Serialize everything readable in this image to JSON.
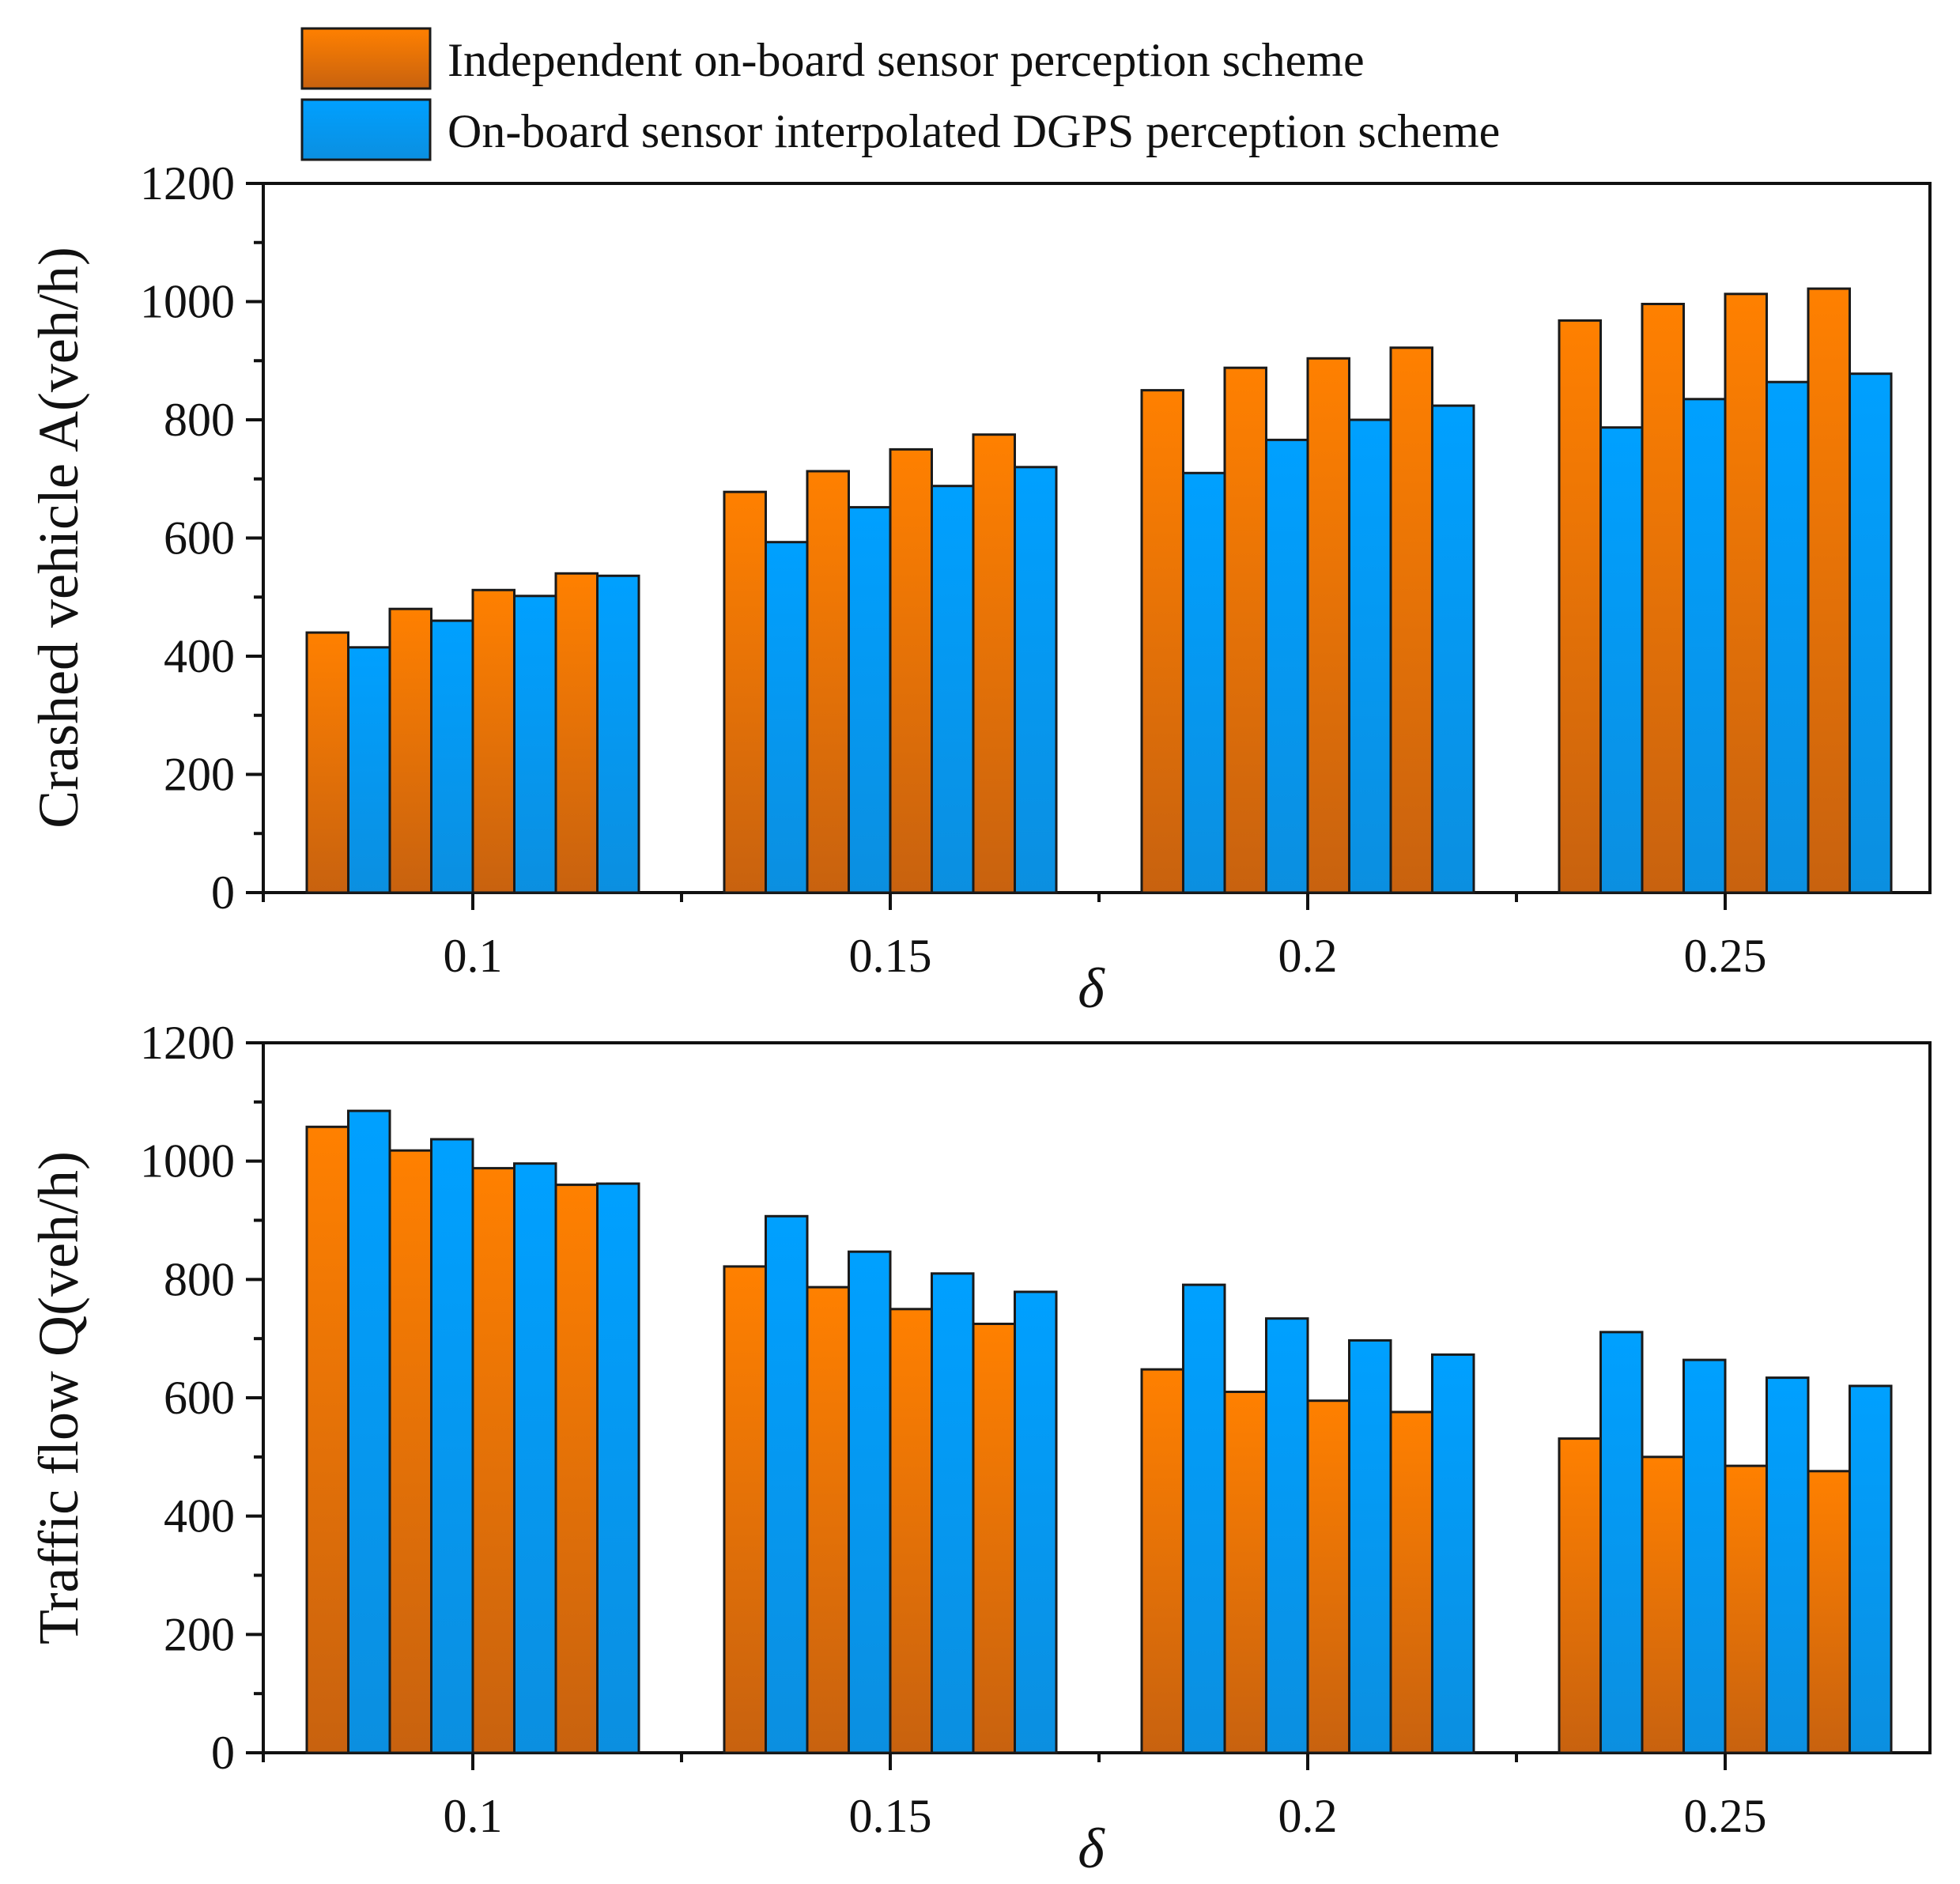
{
  "colors": {
    "orange_top": "#ff8000",
    "orange_bottom": "#c8620f",
    "blue_top": "#00a0ff",
    "blue_bottom": "#0b8fe0",
    "axis": "#111111"
  },
  "legend": {
    "items": [
      {
        "label": "Independent on-board sensor perception scheme",
        "color": "orange"
      },
      {
        "label": "On-board sensor interpolated DGPS perception scheme",
        "color": "blue"
      }
    ]
  },
  "chart_data": [
    {
      "type": "bar",
      "title": "",
      "xlabel": "δ",
      "ylabel": "Crashed vehicle A(veh/h)",
      "categories": [
        "0.1",
        "0.15",
        "0.2",
        "0.25"
      ],
      "ylim": [
        0,
        1200
      ],
      "yticks": [
        "0",
        "200",
        "400",
        "600",
        "800",
        "1000",
        "1200"
      ],
      "bars_per_category": 8,
      "series": [
        {
          "name": "Independent on-board sensor perception scheme",
          "color": "orange",
          "values": [
            [
              440,
              480,
              512,
              540
            ],
            [
              678,
              713,
              750,
              775
            ],
            [
              850,
              888,
              904,
              922
            ],
            [
              968,
              996,
              1013,
              1022
            ]
          ]
        },
        {
          "name": "On-board sensor interpolated DGPS perception scheme",
          "color": "blue",
          "values": [
            [
              415,
              460,
              502,
              536
            ],
            [
              593,
              652,
              688,
              720
            ],
            [
              710,
              766,
              800,
              824
            ],
            [
              787,
              835,
              864,
              878
            ]
          ]
        }
      ]
    },
    {
      "type": "bar",
      "title": "",
      "xlabel": "δ",
      "ylabel": "Traffic flow Q(veh/h)",
      "categories": [
        "0.1",
        "0.15",
        "0.2",
        "0.25"
      ],
      "ylim": [
        0,
        1200
      ],
      "yticks": [
        "0",
        "200",
        "400",
        "600",
        "800",
        "1000",
        "1200"
      ],
      "bars_per_category": 8,
      "series": [
        {
          "name": "Independent on-board sensor perception scheme",
          "color": "orange",
          "values": [
            [
              1058,
              1018,
              988,
              960
            ],
            [
              822,
              787,
              750,
              725
            ],
            [
              648,
              610,
              595,
              576
            ],
            [
              531,
              500,
              485,
              476
            ]
          ]
        },
        {
          "name": "On-board sensor interpolated DGPS perception scheme",
          "color": "blue",
          "values": [
            [
              1085,
              1037,
              996,
              962
            ],
            [
              907,
              847,
              810,
              779
            ],
            [
              791,
              734,
              697,
              673
            ],
            [
              711,
              664,
              634,
              620
            ]
          ]
        }
      ]
    }
  ]
}
